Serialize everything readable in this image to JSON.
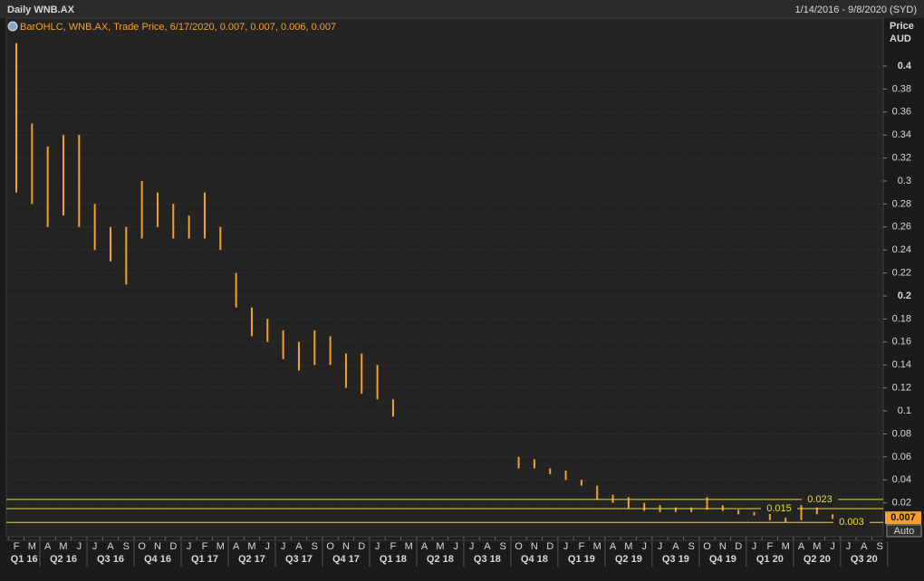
{
  "header": {
    "title": "Daily WNB.AX",
    "range": "1/14/2016 - 9/8/2020 (SYD)"
  },
  "chart_data": {
    "type": "ohlc",
    "legend": "BarOHLC, WNB.AX, Trade Price, 6/17/2020, 0.007, 0.007, 0.006, 0.007",
    "y_label": "Price",
    "y_unit": "AUD",
    "categories": [
      "F",
      "M",
      "A",
      "M",
      "J",
      "J",
      "A",
      "S",
      "O",
      "N",
      "D",
      "J",
      "F",
      "M",
      "A",
      "M",
      "J",
      "J",
      "A",
      "S",
      "O",
      "N",
      "D",
      "J",
      "F",
      "M",
      "A",
      "M",
      "J",
      "J",
      "A",
      "S",
      "O",
      "N",
      "D",
      "J",
      "F",
      "M",
      "A",
      "M",
      "J",
      "J",
      "A",
      "S",
      "O",
      "N",
      "D",
      "J",
      "F",
      "M",
      "A",
      "M",
      "J",
      "J",
      "A",
      "S"
    ],
    "quarters": [
      "Q1 16",
      "Q2 16",
      "Q3 16",
      "Q4 16",
      "Q1 17",
      "Q2 17",
      "Q3 17",
      "Q4 17",
      "Q1 18",
      "Q2 18",
      "Q3 18",
      "Q4 18",
      "Q1 19",
      "Q2 19",
      "Q3 19",
      "Q4 19",
      "Q1 20",
      "Q2 20",
      "Q3 20"
    ],
    "high": [
      0.42,
      0.35,
      0.33,
      0.34,
      0.34,
      0.28,
      0.26,
      0.26,
      0.3,
      0.29,
      0.28,
      0.27,
      0.29,
      0.26,
      0.22,
      0.19,
      0.18,
      0.17,
      0.16,
      0.17,
      0.165,
      0.15,
      0.15,
      0.14,
      0.11,
      null,
      null,
      null,
      null,
      null,
      null,
      null,
      0.06,
      0.058,
      0.05,
      0.048,
      0.04,
      0.035,
      0.027,
      0.025,
      0.02,
      0.018,
      0.016,
      0.016,
      0.025,
      0.018,
      0.014,
      0.012,
      0.012,
      0.007,
      0.018,
      0.016,
      0.01,
      null,
      null,
      null
    ],
    "low": [
      0.29,
      0.28,
      0.26,
      0.27,
      0.26,
      0.24,
      0.23,
      0.21,
      0.25,
      0.26,
      0.25,
      0.25,
      0.25,
      0.24,
      0.19,
      0.165,
      0.16,
      0.145,
      0.135,
      0.14,
      0.14,
      0.12,
      0.115,
      0.11,
      0.095,
      null,
      null,
      null,
      null,
      null,
      null,
      null,
      0.05,
      0.05,
      0.045,
      0.04,
      0.035,
      0.023,
      0.02,
      0.015,
      0.013,
      0.012,
      0.012,
      0.012,
      0.014,
      0.013,
      0.01,
      0.009,
      0.005,
      0.003,
      0.005,
      0.01,
      0.006,
      null,
      null,
      null
    ],
    "color": "#f5a02c",
    "ylim": [
      -0.0094,
      0.4417
    ],
    "yticks": [
      0.02,
      0.04,
      0.06,
      0.08,
      0.1,
      0.12,
      0.14,
      0.16,
      0.18,
      0.2,
      0.22,
      0.24,
      0.26,
      0.28,
      0.3,
      0.32,
      0.34,
      0.36,
      0.38,
      0.4
    ],
    "grid": true,
    "hlines": [
      0.023,
      0.015,
      0.003
    ],
    "hline_color": "#e6e02a",
    "last_price": 0.007,
    "auto_button": "Auto"
  }
}
